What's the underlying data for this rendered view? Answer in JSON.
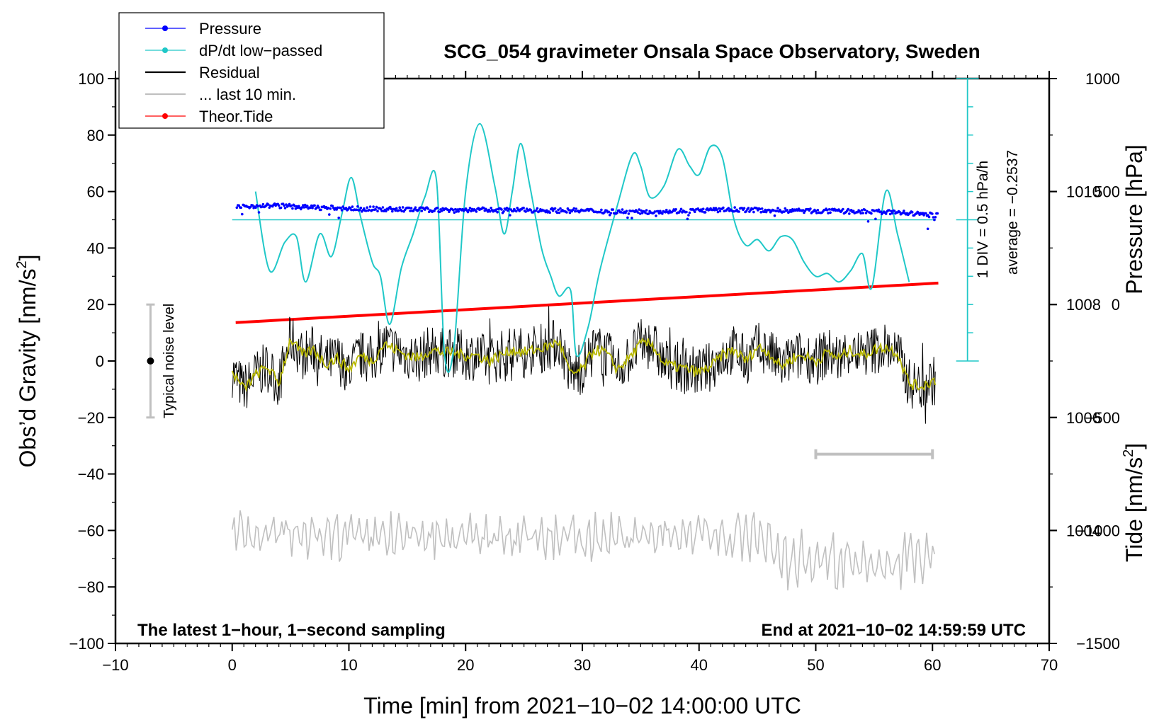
{
  "chart_data": {
    "type": "line",
    "title": "SCG_054 gravimeter Onsala Space Observatory, Sweden",
    "xlabel": "Time [min] from 2021−10−02 14:00:00 UTC",
    "ylabel_left": "Obs’d Gravity [nm/s²]",
    "ylabel_left_main": "Obs’d Gravity [nm/s",
    "ylabel_right_pressure": "Pressure [hPa]",
    "ylabel_right_tide_main": "Tide [nm/s",
    "unit_sup": "2",
    "unit_close": "]",
    "xlim": [
      -10,
      70
    ],
    "ylim": [
      -100,
      100
    ],
    "x_ticks": [
      -10,
      0,
      10,
      20,
      30,
      40,
      50,
      60,
      70
    ],
    "x_tick_labels": [
      "−10",
      "0",
      "10",
      "20",
      "30",
      "40",
      "50",
      "60",
      "70"
    ],
    "y_ticks": [
      -100,
      -80,
      -60,
      -40,
      -20,
      0,
      20,
      40,
      60,
      80,
      100
    ],
    "y_tick_labels": [
      "−100",
      "−80",
      "−60",
      "−40",
      "−20",
      "0",
      "20",
      "40",
      "60",
      "80",
      "100"
    ],
    "pressure_axis": {
      "range_hpa": [
        1002,
        1012
      ],
      "ticks": [
        1004,
        1006,
        1008,
        1010
      ],
      "tick_labels": [
        "1004",
        "1006",
        "1008",
        "1010"
      ]
    },
    "tide_axis": {
      "range": [
        -1500,
        1000
      ],
      "ticks": [
        -1500,
        -1000,
        -500,
        0,
        500,
        1000
      ],
      "tick_labels": [
        "−1500",
        "−1000",
        "−500",
        "0",
        "500",
        "1000"
      ]
    },
    "legend": [
      {
        "label": "Pressure",
        "color": "#0000ff",
        "marker": true
      },
      {
        "label": "dP/dt low−passed",
        "color": "#20c8c8",
        "marker": true
      },
      {
        "label": "Residual",
        "color": "#000000",
        "marker": false
      },
      {
        "label": "... last 10 min.",
        "color": "#c0c0c0",
        "marker": false
      },
      {
        "label": "Theor.Tide",
        "color": "#ff0000",
        "marker": true
      }
    ],
    "annotations": {
      "left_bottom": "The latest 1−hour, 1−second sampling",
      "right_bottom": "End at 2021−10−02 14:59:59 UTC",
      "div_label": "1 DIV = 0.5 hPa/h",
      "average_label": "average = −0.2537",
      "noise_label": "Typical noise level"
    },
    "noise_bar": {
      "x": -7,
      "y_center": 0,
      "y_range": [
        -20,
        20
      ]
    },
    "last10_bar": {
      "x_range": [
        50,
        60
      ],
      "y": -33
    },
    "dpdt_ruler": {
      "x": 63,
      "y_range": [
        0,
        100
      ],
      "baseline": 50
    },
    "series": [
      {
        "name": "Pressure",
        "color": "#0000ff",
        "x": [
          0.5,
          2,
          4,
          6,
          10,
          14,
          18,
          22,
          26,
          30,
          35,
          40,
          43,
          46,
          50,
          54,
          57,
          60.5
        ],
        "y": [
          54.5,
          55,
          55,
          54.5,
          54,
          53.7,
          53.5,
          53.5,
          53.4,
          53.2,
          52.8,
          53.3,
          53.6,
          53.4,
          53.1,
          52.9,
          52.6,
          51.5
        ]
      },
      {
        "name": "dP/dt low-passed",
        "color": "#20c8c8",
        "x": [
          2,
          3.2,
          4.5,
          5.5,
          6.3,
          7.5,
          8.5,
          9.4,
          10.2,
          11,
          12,
          12.7,
          13.5,
          14.5,
          15.5,
          16.5,
          17.5,
          18.2,
          19,
          20,
          21.2,
          22.5,
          23.3,
          24,
          24.7,
          25.5,
          26.5,
          27.3,
          28,
          29,
          29.5,
          30.5,
          31.5,
          33,
          34.3,
          35,
          35.8,
          37,
          38.2,
          39.2,
          40,
          41,
          42,
          43,
          44,
          45,
          46,
          47,
          48,
          49,
          50,
          51,
          52,
          53,
          54,
          54.8,
          56,
          57,
          58
        ],
        "y": [
          60,
          32,
          42,
          44,
          28,
          45,
          37,
          52,
          65,
          51,
          35,
          30,
          13,
          33,
          45,
          58,
          64,
          2,
          5,
          60,
          84,
          62,
          45,
          60,
          77,
          62,
          40,
          30,
          23,
          25,
          2,
          12,
          32,
          55,
          73,
          69,
          58,
          62,
          75,
          69,
          66,
          76,
          72,
          50,
          41,
          43,
          39,
          44,
          43,
          35,
          30,
          31,
          28,
          32,
          38,
          26,
          60,
          45,
          28
        ]
      },
      {
        "name": "Residual (smoothed, yellow)",
        "color": "#b8b800",
        "x": [
          0,
          1,
          2,
          3,
          4,
          5,
          6,
          7,
          8,
          9,
          10,
          11,
          12,
          13,
          14,
          15,
          16,
          17,
          18,
          19,
          20,
          21,
          22,
          23,
          24,
          25,
          26,
          27,
          28,
          29,
          30,
          31,
          32,
          33,
          34,
          35,
          36,
          37,
          38,
          39,
          40,
          41,
          42,
          43,
          44,
          45,
          46,
          47,
          48,
          49,
          50,
          51,
          52,
          53,
          54,
          55,
          56,
          57,
          58,
          59,
          60
        ],
        "y": [
          -4,
          -10,
          -5,
          -2,
          -8,
          8,
          2,
          4,
          -1,
          1,
          -3,
          2,
          0,
          6,
          4,
          2,
          1,
          4,
          3,
          3,
          2,
          2,
          0,
          2,
          4,
          3,
          4,
          5,
          7,
          -5,
          -3,
          4,
          3,
          -3,
          1,
          6,
          6,
          -1,
          -2,
          -3,
          -4,
          -2,
          2,
          4,
          0,
          5,
          3,
          -2,
          1,
          2,
          0,
          3,
          1,
          4,
          2,
          4,
          5,
          3,
          -8,
          -9,
          -7
        ]
      },
      {
        "name": "Theor.Tide",
        "color": "#ff0000",
        "x": [
          0.3,
          60.5
        ],
        "y_tide": [
          -80,
          95
        ]
      }
    ]
  }
}
